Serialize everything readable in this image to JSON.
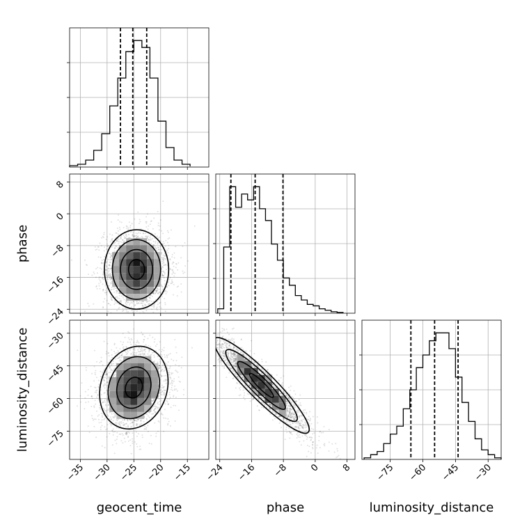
{
  "chart_data": {
    "type": "corner",
    "parameters": [
      "geocent_time",
      "phase",
      "luminosity_distance"
    ],
    "ranges": {
      "geocent_time": [
        -37,
        -11
      ],
      "phase": [
        -25,
        10
      ],
      "luminosity_distance": [
        -88,
        -24
      ]
    },
    "ticks": {
      "geocent_time": [
        -35,
        -30,
        -25,
        -20,
        -15
      ],
      "phase": [
        -24,
        -16,
        -8,
        0,
        8
      ],
      "luminosity_distance": [
        -75,
        -60,
        -45,
        -30
      ]
    },
    "axis_labels": {
      "geocent_time": "geocent_time",
      "phase": "phase",
      "luminosity_distance": "luminosity_distance"
    },
    "grid": true,
    "histograms": [
      {
        "param": "geocent_time",
        "bins": [
          -37,
          -35.5,
          -34,
          -32.5,
          -31,
          -29.5,
          -28,
          -26.5,
          -25,
          -23.5,
          -22,
          -20.5,
          -19,
          -17.5,
          -16,
          -14.5
        ],
        "counts": [
          0.01,
          0.02,
          0.05,
          0.12,
          0.24,
          0.44,
          0.64,
          0.83,
          0.91,
          0.86,
          0.64,
          0.33,
          0.14,
          0.05,
          0.02,
          0.005
        ],
        "quantiles": [
          -27.5,
          -25.2,
          -22.6
        ]
      },
      {
        "param": "phase",
        "bins": [
          -24.5,
          -23,
          -21.5,
          -20,
          -18.5,
          -17,
          -15.5,
          -14,
          -12.5,
          -11,
          -9.5,
          -8,
          -6.5,
          -5,
          -3.5,
          -2,
          -0.5,
          1,
          2.5,
          4,
          5.5,
          7
        ],
        "counts": [
          0.03,
          0.45,
          0.86,
          0.72,
          0.81,
          0.77,
          0.86,
          0.71,
          0.63,
          0.47,
          0.36,
          0.24,
          0.19,
          0.12,
          0.09,
          0.06,
          0.05,
          0.03,
          0.02,
          0.01,
          0.005
        ],
        "quantiles": [
          -21.2,
          -15.1,
          -8.1
        ]
      },
      {
        "param": "luminosity_distance",
        "bins": [
          -87,
          -84,
          -81,
          -78,
          -75,
          -72,
          -69,
          -66,
          -63,
          -60,
          -57,
          -54,
          -51,
          -48,
          -45,
          -42,
          -39,
          -36,
          -33,
          -30,
          -27,
          -24
        ],
        "counts": [
          0.01,
          0.03,
          0.05,
          0.1,
          0.16,
          0.21,
          0.32,
          0.44,
          0.58,
          0.66,
          0.75,
          0.8,
          0.8,
          0.7,
          0.52,
          0.36,
          0.24,
          0.13,
          0.06,
          0.03,
          0.01
        ],
        "quantiles": [
          -65.5,
          -54.6,
          -43.8
        ]
      }
    ],
    "joint": [
      {
        "x": "geocent_time",
        "y": "phase",
        "mean": [
          -24.5,
          -14
        ],
        "std": [
          3.0,
          5.0
        ],
        "corr": 0.0
      },
      {
        "x": "geocent_time",
        "y": "luminosity_distance",
        "mean": [
          -25,
          -55
        ],
        "std": [
          3.2,
          9.5
        ],
        "corr": 0.15
      },
      {
        "x": "phase",
        "y": "luminosity_distance",
        "mean": [
          -13.5,
          -54
        ],
        "std": [
          6.0,
          11.0
        ],
        "corr": -0.92
      }
    ]
  }
}
